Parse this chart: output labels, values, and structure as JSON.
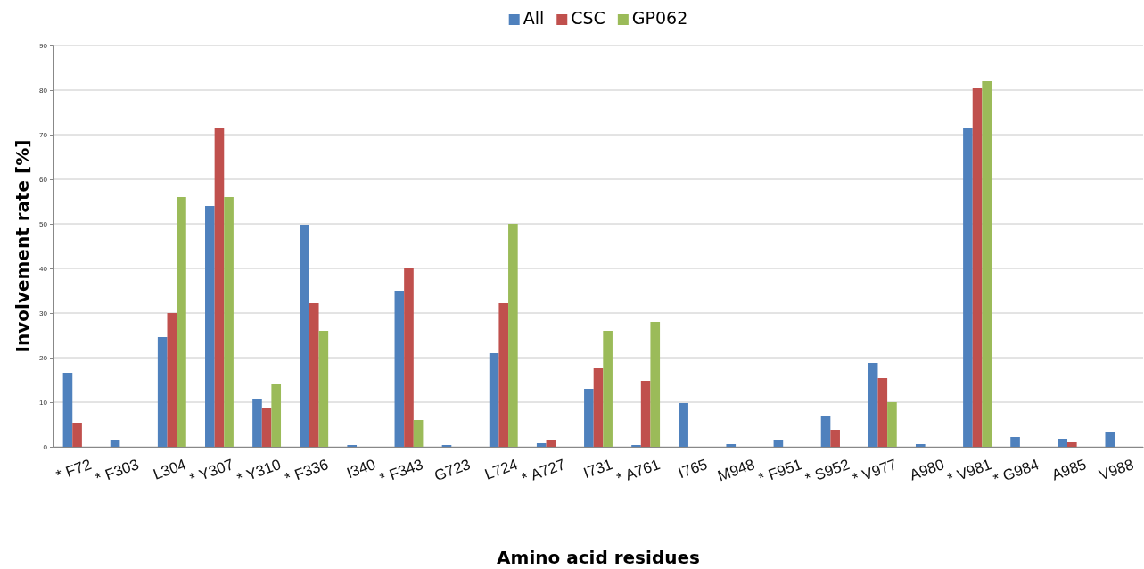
{
  "chart_data": {
    "type": "bar",
    "xlabel": "Amino acid residues",
    "ylabel": "Involvement rate [%]",
    "categories": [
      "* F72",
      "* F303",
      "L304",
      "* Y307",
      "* Y310",
      "* F336",
      "I340",
      "* F343",
      "G723",
      "L724",
      "* A727",
      "I731",
      "* A761",
      "I765",
      "M948",
      "* F951",
      "* S952",
      "* V977",
      "A980",
      "* V981",
      "* G984",
      "A985",
      "V988"
    ],
    "series": [
      {
        "name": "All",
        "color": "#4f81bd",
        "values": [
          16.6,
          1.6,
          24.6,
          54,
          10.8,
          49.8,
          0.4,
          35,
          0.4,
          21,
          0.8,
          13,
          0.4,
          9.8,
          0.6,
          1.6,
          6.8,
          18.8,
          0.6,
          71.6,
          2.2,
          1.8,
          3.4
        ]
      },
      {
        "name": "CSC",
        "color": "#c0504d",
        "values": [
          5.4,
          null,
          30,
          71.6,
          8.6,
          32.2,
          null,
          40,
          null,
          32.2,
          1.6,
          17.6,
          14.8,
          null,
          null,
          null,
          3.8,
          15.4,
          null,
          80.4,
          null,
          1,
          null
        ]
      },
      {
        "name": "GP062",
        "color": "#9bbb59",
        "values": [
          null,
          null,
          56,
          56,
          14,
          26,
          null,
          6,
          null,
          50,
          null,
          26,
          28,
          null,
          null,
          null,
          null,
          10,
          null,
          82,
          null,
          null,
          null
        ]
      }
    ],
    "ylim": [
      0,
      90
    ],
    "yticks": [
      0,
      10,
      20,
      30,
      40,
      50,
      60,
      70,
      80,
      90
    ],
    "grid": "y",
    "legend": "top"
  }
}
